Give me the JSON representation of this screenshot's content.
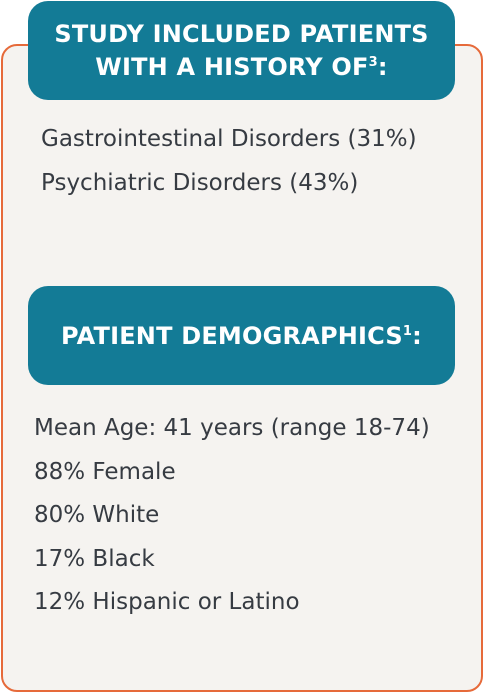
{
  "history_section": {
    "heading_line1": "STUDY INCLUDED PATIENTS",
    "heading_line2": "WITH A HISTORY OF",
    "heading_ref": "3",
    "heading_suffix": ":",
    "items": [
      "Gastrointestinal Disorders (31%)",
      "Psychiatric Disorders (43%)"
    ]
  },
  "demographics_section": {
    "heading": "PATIENT DEMOGRAPHICS",
    "heading_ref": "1",
    "heading_suffix": ":",
    "items": [
      "Mean Age: 41 years (range 18-74)",
      "88% Female",
      "80% White",
      "17% Black",
      "12% Hispanic or Latino"
    ]
  },
  "colors": {
    "banner": "#137b96",
    "border": "#e66a3a",
    "card_background": "#f5f3f0",
    "text": "#363b42"
  }
}
